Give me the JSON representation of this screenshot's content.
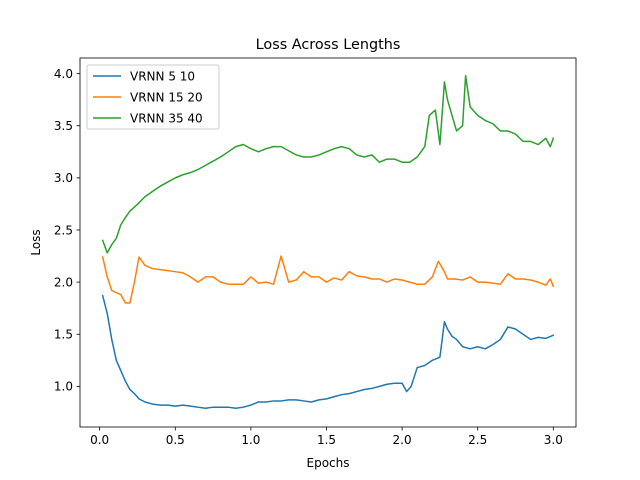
{
  "chart_data": {
    "type": "line",
    "title": "Loss Across Lengths",
    "xlabel": "Epochs",
    "ylabel": "Loss",
    "xlim": [
      -0.13,
      3.15
    ],
    "ylim": [
      0.61,
      4.15
    ],
    "xticks": [
      0.0,
      0.5,
      1.0,
      1.5,
      2.0,
      2.5,
      3.0
    ],
    "xtick_labels": [
      "0.0",
      "0.5",
      "1.0",
      "1.5",
      "2.0",
      "2.5",
      "3.0"
    ],
    "yticks": [
      1.0,
      1.5,
      2.0,
      2.5,
      3.0,
      3.5,
      4.0
    ],
    "ytick_labels": [
      "1.0",
      "1.5",
      "2.0",
      "2.5",
      "3.0",
      "3.5",
      "4.0"
    ],
    "grid": false,
    "legend_position": "top-left",
    "series": [
      {
        "name": "VRNN 5 10",
        "color": "#1f77b4",
        "x": [
          0.02,
          0.05,
          0.08,
          0.11,
          0.14,
          0.17,
          0.2,
          0.23,
          0.26,
          0.3,
          0.35,
          0.4,
          0.45,
          0.5,
          0.55,
          0.6,
          0.65,
          0.7,
          0.75,
          0.8,
          0.85,
          0.9,
          0.95,
          1.0,
          1.05,
          1.1,
          1.15,
          1.2,
          1.25,
          1.3,
          1.35,
          1.4,
          1.45,
          1.5,
          1.55,
          1.6,
          1.65,
          1.7,
          1.75,
          1.8,
          1.85,
          1.9,
          1.95,
          2.0,
          2.03,
          2.06,
          2.1,
          2.15,
          2.2,
          2.25,
          2.28,
          2.3,
          2.33,
          2.36,
          2.4,
          2.45,
          2.5,
          2.55,
          2.6,
          2.65,
          2.7,
          2.75,
          2.8,
          2.85,
          2.9,
          2.95,
          3.0
        ],
        "y": [
          1.87,
          1.7,
          1.45,
          1.25,
          1.15,
          1.05,
          0.97,
          0.93,
          0.88,
          0.85,
          0.83,
          0.82,
          0.82,
          0.81,
          0.82,
          0.81,
          0.8,
          0.79,
          0.8,
          0.8,
          0.8,
          0.79,
          0.8,
          0.82,
          0.85,
          0.85,
          0.86,
          0.86,
          0.87,
          0.87,
          0.86,
          0.85,
          0.87,
          0.88,
          0.9,
          0.92,
          0.93,
          0.95,
          0.97,
          0.98,
          1.0,
          1.02,
          1.03,
          1.03,
          0.95,
          1.0,
          1.18,
          1.2,
          1.25,
          1.28,
          1.62,
          1.55,
          1.48,
          1.45,
          1.38,
          1.36,
          1.38,
          1.36,
          1.4,
          1.45,
          1.57,
          1.55,
          1.5,
          1.45,
          1.47,
          1.46,
          1.49
        ]
      },
      {
        "name": "VRNN 15 20",
        "color": "#ff7f0e",
        "x": [
          0.02,
          0.05,
          0.08,
          0.11,
          0.14,
          0.17,
          0.2,
          0.23,
          0.26,
          0.3,
          0.35,
          0.4,
          0.45,
          0.5,
          0.55,
          0.6,
          0.65,
          0.7,
          0.75,
          0.8,
          0.85,
          0.9,
          0.95,
          1.0,
          1.05,
          1.1,
          1.15,
          1.2,
          1.25,
          1.3,
          1.35,
          1.4,
          1.45,
          1.5,
          1.55,
          1.6,
          1.65,
          1.7,
          1.75,
          1.8,
          1.85,
          1.9,
          1.95,
          2.0,
          2.05,
          2.1,
          2.15,
          2.2,
          2.24,
          2.28,
          2.3,
          2.35,
          2.4,
          2.45,
          2.5,
          2.55,
          2.6,
          2.65,
          2.7,
          2.75,
          2.8,
          2.85,
          2.9,
          2.95,
          2.98,
          3.0
        ],
        "y": [
          2.24,
          2.05,
          1.92,
          1.9,
          1.88,
          1.8,
          1.8,
          2.0,
          2.24,
          2.16,
          2.13,
          2.12,
          2.11,
          2.1,
          2.09,
          2.05,
          2.0,
          2.05,
          2.05,
          2.0,
          1.98,
          1.98,
          1.98,
          2.05,
          1.99,
          2.0,
          1.98,
          2.25,
          2.0,
          2.02,
          2.1,
          2.05,
          2.05,
          2.0,
          2.04,
          2.02,
          2.1,
          2.06,
          2.05,
          2.03,
          2.03,
          2.0,
          2.03,
          2.02,
          2.0,
          1.98,
          1.98,
          2.05,
          2.2,
          2.1,
          2.03,
          2.03,
          2.02,
          2.05,
          2.0,
          2.0,
          1.99,
          1.98,
          2.08,
          2.03,
          2.03,
          2.02,
          2.0,
          1.97,
          2.03,
          1.96
        ]
      },
      {
        "name": "VRNN 35 40",
        "color": "#2ca02c",
        "x": [
          0.02,
          0.05,
          0.08,
          0.11,
          0.14,
          0.17,
          0.2,
          0.23,
          0.26,
          0.3,
          0.35,
          0.4,
          0.45,
          0.5,
          0.55,
          0.6,
          0.65,
          0.7,
          0.75,
          0.8,
          0.85,
          0.9,
          0.95,
          1.0,
          1.05,
          1.1,
          1.15,
          1.2,
          1.25,
          1.3,
          1.35,
          1.4,
          1.45,
          1.5,
          1.55,
          1.6,
          1.65,
          1.7,
          1.75,
          1.8,
          1.85,
          1.9,
          1.95,
          2.0,
          2.05,
          2.1,
          2.15,
          2.18,
          2.22,
          2.25,
          2.28,
          2.3,
          2.33,
          2.36,
          2.4,
          2.42,
          2.45,
          2.5,
          2.55,
          2.6,
          2.65,
          2.7,
          2.75,
          2.8,
          2.85,
          2.9,
          2.95,
          2.98,
          3.0
        ],
        "y": [
          2.4,
          2.28,
          2.36,
          2.42,
          2.55,
          2.62,
          2.68,
          2.72,
          2.76,
          2.82,
          2.87,
          2.92,
          2.96,
          3.0,
          3.03,
          3.05,
          3.08,
          3.12,
          3.16,
          3.2,
          3.25,
          3.3,
          3.32,
          3.28,
          3.25,
          3.28,
          3.3,
          3.3,
          3.26,
          3.22,
          3.2,
          3.2,
          3.22,
          3.25,
          3.28,
          3.3,
          3.28,
          3.22,
          3.2,
          3.22,
          3.15,
          3.18,
          3.18,
          3.15,
          3.15,
          3.2,
          3.3,
          3.6,
          3.65,
          3.32,
          3.92,
          3.75,
          3.6,
          3.45,
          3.5,
          3.98,
          3.68,
          3.6,
          3.55,
          3.52,
          3.45,
          3.45,
          3.42,
          3.35,
          3.35,
          3.32,
          3.38,
          3.3,
          3.38
        ]
      }
    ]
  }
}
